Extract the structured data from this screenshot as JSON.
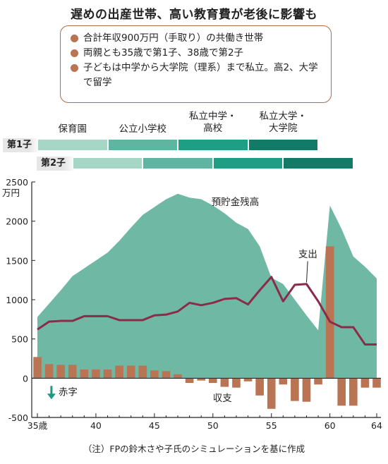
{
  "title": "遅めの出産世帯、高い教育費が老後に影響も",
  "notes": [
    "合計年収900万円（手取り）の共働き世帯",
    "両親とも35歳で第1子、38歳で第2子",
    "子どもは中学から大学院（理系）まで私立。高2、大学で留学"
  ],
  "stages": {
    "labels": [
      "保育園",
      "公立小学校",
      "私立中学・高校",
      "私立大学・大学院"
    ],
    "colors": [
      "#a5d6c6",
      "#5fb5a2",
      "#1f9e86",
      "#137a68"
    ],
    "rows": [
      {
        "label": "第1子",
        "segments": [
          [
            35,
            41
          ],
          [
            41,
            47
          ],
          [
            47,
            53
          ],
          [
            53,
            59
          ]
        ]
      },
      {
        "label": "第2子",
        "segments": [
          [
            38,
            44
          ],
          [
            44,
            50
          ],
          [
            50,
            56
          ],
          [
            56,
            62
          ]
        ]
      }
    ]
  },
  "chart_data": {
    "type": "area",
    "yunit": "万円",
    "ylim": [
      -500,
      2500
    ],
    "yticks": [
      -500,
      0,
      500,
      1000,
      1500,
      2000,
      2500
    ],
    "xlim": [
      35,
      64
    ],
    "xticks": [
      35,
      40,
      45,
      50,
      55,
      60,
      64
    ],
    "xtick_labels": [
      "35歳",
      "40",
      "45",
      "50",
      "55",
      "60",
      "64"
    ],
    "colors": {
      "savings": "#6fb8a4",
      "expense": "#8b2b4a",
      "balance": "#b97454",
      "deficit_arrow": "#1a9a7e"
    },
    "annotations": {
      "savings": "預貯金残高",
      "expense": "支出",
      "balance": "収支",
      "deficit": "赤字"
    },
    "series": [
      {
        "name": "預貯金残高",
        "x": [
          35,
          36,
          37,
          38,
          39,
          40,
          41,
          42,
          43,
          44,
          45,
          46,
          47,
          48,
          49,
          50,
          51,
          52,
          53,
          54,
          55,
          56,
          57,
          58,
          59,
          60,
          61,
          62,
          63,
          64
        ],
        "values": [
          780,
          950,
          1120,
          1300,
          1400,
          1500,
          1600,
          1750,
          1920,
          2080,
          2180,
          2280,
          2350,
          2300,
          2280,
          2200,
          2100,
          1980,
          1900,
          1680,
          1280,
          1200,
          1000,
          800,
          610,
          2200,
          1900,
          1550,
          1420,
          1270
        ]
      },
      {
        "name": "支出",
        "x": [
          35,
          36,
          37,
          38,
          39,
          40,
          41,
          42,
          43,
          44,
          45,
          46,
          47,
          48,
          49,
          50,
          51,
          52,
          53,
          54,
          55,
          56,
          57,
          58,
          59,
          60,
          61,
          62,
          63,
          64
        ],
        "values": [
          620,
          720,
          730,
          730,
          790,
          790,
          790,
          740,
          740,
          740,
          800,
          810,
          850,
          960,
          930,
          960,
          1010,
          1020,
          940,
          1120,
          1290,
          980,
          1190,
          1200,
          980,
          720,
          650,
          650,
          430,
          430
        ]
      },
      {
        "name": "収支",
        "x": [
          35,
          36,
          37,
          38,
          39,
          40,
          41,
          42,
          43,
          44,
          45,
          46,
          47,
          48,
          49,
          50,
          51,
          52,
          53,
          54,
          55,
          56,
          57,
          58,
          59,
          60,
          61,
          62,
          63,
          64
        ],
        "values": [
          270,
          180,
          170,
          170,
          110,
          110,
          110,
          160,
          160,
          160,
          100,
          90,
          50,
          -60,
          -30,
          -60,
          -110,
          -120,
          -40,
          -220,
          -390,
          -80,
          -290,
          -300,
          -80,
          1680,
          -350,
          -350,
          -120,
          -120
        ]
      }
    ]
  },
  "source": "（注）FPの鈴木さや子氏のシミュレーションを基に作成"
}
